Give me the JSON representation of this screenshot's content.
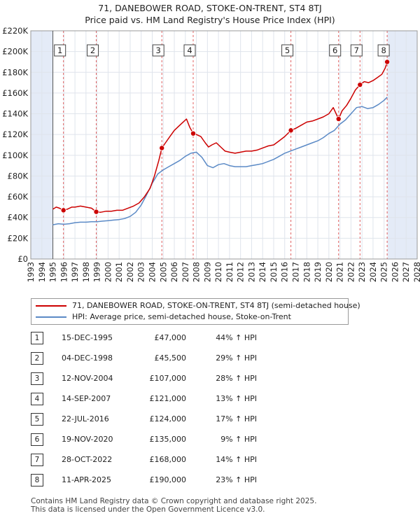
{
  "title": {
    "line1": "71, DANEBOWER ROAD, STOKE-ON-TRENT, ST4 8TJ",
    "line2": "Price paid vs. HM Land Registry's House Price Index (HPI)"
  },
  "colors": {
    "property": "#cc0000",
    "hpi": "#5b8ac6",
    "shade": "#e4ebf7",
    "grid": "#dfe4ec",
    "vline": "#e06060"
  },
  "chart_data": {
    "type": "line",
    "title": "Price paid vs. HM Land Registry's House Price Index (HPI)",
    "xlim": [
      1993,
      2028
    ],
    "ylim": [
      0,
      220000
    ],
    "x_ticks": [
      "1993",
      "1994",
      "1995",
      "1996",
      "1997",
      "1998",
      "1999",
      "2000",
      "2001",
      "2002",
      "2003",
      "2004",
      "2005",
      "2006",
      "2007",
      "2008",
      "2009",
      "2010",
      "2011",
      "2012",
      "2013",
      "2014",
      "2015",
      "2016",
      "2017",
      "2018",
      "2019",
      "2020",
      "2021",
      "2022",
      "2023",
      "2024",
      "2025",
      "2026",
      "2027",
      "2028"
    ],
    "y_ticks": [
      {
        "value": 0,
        "label": "£0"
      },
      {
        "value": 20000,
        "label": "£20K"
      },
      {
        "value": 40000,
        "label": "£40K"
      },
      {
        "value": 60000,
        "label": "£60K"
      },
      {
        "value": 80000,
        "label": "£80K"
      },
      {
        "value": 100000,
        "label": "£100K"
      },
      {
        "value": 120000,
        "label": "£120K"
      },
      {
        "value": 140000,
        "label": "£140K"
      },
      {
        "value": 160000,
        "label": "£160K"
      },
      {
        "value": 180000,
        "label": "£180K"
      },
      {
        "value": 200000,
        "label": "£200K"
      },
      {
        "value": 220000,
        "label": "£220K"
      }
    ],
    "shaded_ranges": [
      [
        1993,
        1995.0
      ],
      [
        2025.3,
        2028
      ]
    ],
    "series": [
      {
        "name": "71, DANEBOWER ROAD, STOKE-ON-TRENT, ST4 8TJ (semi-detached house)",
        "color": "#cc0000",
        "x": [
          1995.0,
          1995.3,
          1995.6,
          1995.96,
          1996.3,
          1996.7,
          1997.0,
          1997.5,
          1998.0,
          1998.5,
          1998.93,
          1999.3,
          1999.8,
          2000.3,
          2000.8,
          2001.3,
          2001.8,
          2002.3,
          2002.8,
          2003.3,
          2003.8,
          2004.2,
          2004.6,
          2004.87,
          2005.2,
          2005.6,
          2006.0,
          2006.4,
          2006.8,
          2007.1,
          2007.4,
          2007.71,
          2008.0,
          2008.4,
          2008.8,
          2009.1,
          2009.4,
          2009.8,
          2010.2,
          2010.6,
          2011.0,
          2011.5,
          2012.0,
          2012.5,
          2013.0,
          2013.5,
          2014.0,
          2014.5,
          2015.0,
          2015.5,
          2016.0,
          2016.56,
          2017.0,
          2017.5,
          2018.0,
          2018.5,
          2019.0,
          2019.5,
          2020.0,
          2020.4,
          2020.88,
          2021.2,
          2021.6,
          2022.0,
          2022.4,
          2022.82,
          2023.2,
          2023.6,
          2024.0,
          2024.4,
          2024.8,
          2025.1,
          2025.28
        ],
        "values": [
          48000,
          50000,
          49000,
          47000,
          48000,
          50000,
          50000,
          51000,
          50000,
          49000,
          45500,
          45000,
          46000,
          46000,
          47000,
          47000,
          49000,
          51000,
          54000,
          60000,
          68000,
          80000,
          95000,
          107000,
          112000,
          118000,
          124000,
          128000,
          132000,
          135000,
          127000,
          121000,
          120000,
          118000,
          112000,
          108000,
          110000,
          112000,
          108000,
          104000,
          103000,
          102000,
          103000,
          104000,
          104000,
          105000,
          107000,
          109000,
          110000,
          114000,
          118000,
          124000,
          126000,
          129000,
          132000,
          133000,
          135000,
          137000,
          140000,
          146000,
          135000,
          143000,
          148000,
          155000,
          163000,
          168000,
          171000,
          170000,
          172000,
          175000,
          178000,
          184000,
          190000
        ]
      },
      {
        "name": "HPI: Average price, semi-detached house, Stoke-on-Trent",
        "color": "#5b8ac6",
        "x": [
          1995.0,
          1995.5,
          1996.0,
          1996.5,
          1997.0,
          1997.5,
          1998.0,
          1998.5,
          1999.0,
          1999.5,
          2000.0,
          2000.5,
          2001.0,
          2001.5,
          2002.0,
          2002.5,
          2003.0,
          2003.5,
          2004.0,
          2004.5,
          2005.0,
          2005.5,
          2006.0,
          2006.5,
          2007.0,
          2007.5,
          2008.0,
          2008.5,
          2009.0,
          2009.5,
          2010.0,
          2010.5,
          2011.0,
          2011.5,
          2012.0,
          2012.5,
          2013.0,
          2013.5,
          2014.0,
          2014.5,
          2015.0,
          2015.5,
          2016.0,
          2016.5,
          2017.0,
          2017.5,
          2018.0,
          2018.5,
          2019.0,
          2019.5,
          2020.0,
          2020.5,
          2021.0,
          2021.5,
          2022.0,
          2022.5,
          2023.0,
          2023.5,
          2024.0,
          2024.5,
          2025.0,
          2025.28
        ],
        "values": [
          33000,
          34000,
          33500,
          34000,
          35000,
          35500,
          35500,
          36000,
          36000,
          36500,
          37000,
          37500,
          38000,
          39000,
          41000,
          45000,
          52000,
          62000,
          73000,
          82000,
          86000,
          89000,
          92000,
          95000,
          99000,
          102000,
          103000,
          98000,
          90000,
          88000,
          91000,
          92000,
          90000,
          89000,
          89000,
          89000,
          90000,
          91000,
          92000,
          94000,
          96000,
          99000,
          102000,
          104000,
          106000,
          108000,
          110000,
          112000,
          114000,
          117000,
          121000,
          124000,
          130000,
          134000,
          140000,
          146000,
          147000,
          145000,
          146000,
          149000,
          153000,
          156000
        ]
      }
    ],
    "transactions": [
      {
        "num": "1",
        "date": "15-DEC-1995",
        "x": 1995.96,
        "price": 47000,
        "price_label": "£47,000",
        "hpi": "44% ↑ HPI"
      },
      {
        "num": "2",
        "date": "04-DEC-1998",
        "x": 1998.93,
        "price": 45500,
        "price_label": "£45,500",
        "hpi": "29% ↑ HPI"
      },
      {
        "num": "3",
        "date": "12-NOV-2004",
        "x": 2004.87,
        "price": 107000,
        "price_label": "£107,000",
        "hpi": "28% ↑ HPI"
      },
      {
        "num": "4",
        "date": "14-SEP-2007",
        "x": 2007.71,
        "price": 121000,
        "price_label": "£121,000",
        "hpi": "13% ↑ HPI"
      },
      {
        "num": "5",
        "date": "22-JUL-2016",
        "x": 2016.56,
        "price": 124000,
        "price_label": "£124,000",
        "hpi": "17% ↑ HPI"
      },
      {
        "num": "6",
        "date": "19-NOV-2020",
        "x": 2020.88,
        "price": 135000,
        "price_label": "£135,000",
        "hpi": "9% ↑ HPI"
      },
      {
        "num": "7",
        "date": "28-OCT-2022",
        "x": 2022.82,
        "price": 168000,
        "price_label": "£168,000",
        "hpi": "14% ↑ HPI"
      },
      {
        "num": "8",
        "date": "11-APR-2025",
        "x": 2025.28,
        "price": 190000,
        "price_label": "£190,000",
        "hpi": "23% ↑ HPI"
      }
    ]
  },
  "legend": {
    "property_label": "71, DANEBOWER ROAD, STOKE-ON-TRENT, ST4 8TJ (semi-detached house)",
    "hpi_label": "HPI: Average price, semi-detached house, Stoke-on-Trent"
  },
  "footer": {
    "line1": "Contains HM Land Registry data © Crown copyright and database right 2025.",
    "line2": "This data is licensed under the Open Government Licence v3.0."
  }
}
